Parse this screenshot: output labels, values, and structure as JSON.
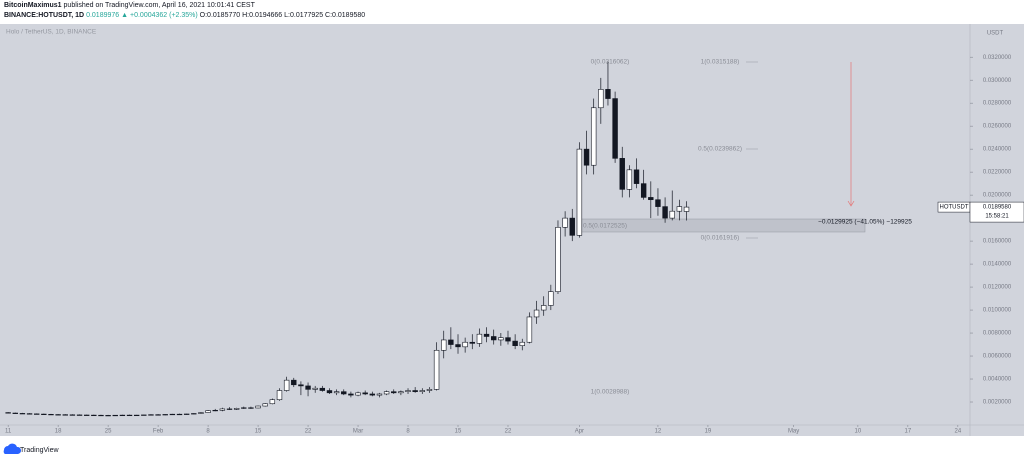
{
  "header": {
    "author": "BitcoinMaximus1",
    "published": "published on TradingView.com, April 16, 2021 10:01:41 CEST",
    "symbol": "BINANCE:HOTUSDT, 1D",
    "price": "0.0189976",
    "change": "▲ +0.0004362 (+2.35%)",
    "open": "O:0.0185770",
    "high": "H:0.0194666",
    "low": "L:0.0177925",
    "close": "C:0.0189580"
  },
  "annotations": [
    "0(0.0316062)",
    "1(0.0028988)",
    "1(0.0315188)",
    "0.5(0.0239862)",
    "0(0.0161916)",
    "0.5(0.0172525)",
    "−0.0129925 (−41.05%) −129925"
  ],
  "footer": "TradingView",
  "chart_data": {
    "type": "candlestick",
    "title": "Holo / TetherUS, 1D, BINANCE",
    "axis_unit": "USDT",
    "symbol_label": "HOTUSDT",
    "last_price": {
      "value": 0.018958,
      "label": "0.0189580"
    },
    "countdown": "15:58:21",
    "up_color": "#ffffff",
    "down_color": "#131722",
    "wick_color": "#131722",
    "grid": false,
    "ylim": [
      0,
      0.0348
    ],
    "yticks": [
      {
        "value": 0.002,
        "label": "0.0020000"
      },
      {
        "value": 0.004,
        "label": "0.0040000"
      },
      {
        "value": 0.006,
        "label": "0.0060000"
      },
      {
        "value": 0.008,
        "label": "0.0080000"
      },
      {
        "value": 0.01,
        "label": "0.0100000"
      },
      {
        "value": 0.012,
        "label": "0.0120000"
      },
      {
        "value": 0.014,
        "label": "0.0140000"
      },
      {
        "value": 0.016,
        "label": "0.0160000"
      },
      {
        "value": 0.018,
        "label": "0.0180000"
      },
      {
        "value": 0.02,
        "label": "0.0200000"
      },
      {
        "value": 0.022,
        "label": "0.0220000"
      },
      {
        "value": 0.024,
        "label": "0.0240000"
      },
      {
        "value": 0.026,
        "label": "0.0260000"
      },
      {
        "value": 0.028,
        "label": "0.0280000"
      },
      {
        "value": 0.03,
        "label": "0.0300000"
      },
      {
        "value": 0.032,
        "label": "0.0320000"
      }
    ],
    "xlim": [
      "01-10",
      "05-25"
    ],
    "xticks": [
      {
        "value": "01-11",
        "label": "11"
      },
      {
        "value": "01-18",
        "label": "18"
      },
      {
        "value": "01-25",
        "label": "25"
      },
      {
        "value": "02-01",
        "label": "Feb"
      },
      {
        "value": "02-08",
        "label": "8"
      },
      {
        "value": "02-15",
        "label": "15"
      },
      {
        "value": "02-22",
        "label": "22"
      },
      {
        "value": "03-01",
        "label": "Mar"
      },
      {
        "value": "03-08",
        "label": "8"
      },
      {
        "value": "03-15",
        "label": "15"
      },
      {
        "value": "03-22",
        "label": "22"
      },
      {
        "value": "04-01",
        "label": "Apr"
      },
      {
        "value": "04-12",
        "label": "12"
      },
      {
        "value": "04-19",
        "label": "19"
      },
      {
        "value": "05-01",
        "label": "May"
      },
      {
        "value": "05-10",
        "label": "10"
      },
      {
        "value": "05-17",
        "label": "17"
      },
      {
        "value": "05-24",
        "label": "24"
      }
    ],
    "x": [
      "01-11",
      "01-12",
      "01-13",
      "01-14",
      "01-15",
      "01-16",
      "01-17",
      "01-18",
      "01-19",
      "01-20",
      "01-21",
      "01-22",
      "01-23",
      "01-24",
      "01-25",
      "01-26",
      "01-27",
      "01-28",
      "01-29",
      "01-30",
      "01-31",
      "02-01",
      "02-02",
      "02-03",
      "02-04",
      "02-05",
      "02-06",
      "02-07",
      "02-08",
      "02-09",
      "02-10",
      "02-11",
      "02-12",
      "02-13",
      "02-14",
      "02-15",
      "02-16",
      "02-17",
      "02-18",
      "02-19",
      "02-20",
      "02-21",
      "02-22",
      "02-23",
      "02-24",
      "02-25",
      "02-26",
      "02-27",
      "02-28",
      "03-01",
      "03-02",
      "03-03",
      "03-04",
      "03-05",
      "03-06",
      "03-07",
      "03-08",
      "03-09",
      "03-10",
      "03-11",
      "03-12",
      "03-13",
      "03-14",
      "03-15",
      "03-16",
      "03-17",
      "03-18",
      "03-19",
      "03-20",
      "03-21",
      "03-22",
      "03-23",
      "03-24",
      "03-25",
      "03-26",
      "03-27",
      "03-28",
      "03-29",
      "03-30",
      "03-31",
      "04-01",
      "04-02",
      "04-03",
      "04-04",
      "04-05",
      "04-06",
      "04-07",
      "04-08",
      "04-09",
      "04-10",
      "04-11",
      "04-12",
      "04-13",
      "04-14",
      "04-15",
      "04-16"
    ],
    "ohlc": [
      [
        0.00108,
        0.00112,
        0.00102,
        0.00104
      ],
      [
        0.00104,
        0.00108,
        0.00098,
        0.00101
      ],
      [
        0.00101,
        0.00105,
        0.00096,
        0.00099
      ],
      [
        0.00099,
        0.00103,
        0.00094,
        0.00097
      ],
      [
        0.00097,
        0.00101,
        0.00092,
        0.00095
      ],
      [
        0.00095,
        0.00099,
        0.0009,
        0.00093
      ],
      [
        0.00093,
        0.00097,
        0.00088,
        0.00091
      ],
      [
        0.00091,
        0.00095,
        0.00087,
        0.0009
      ],
      [
        0.0009,
        0.00094,
        0.00086,
        0.00089
      ],
      [
        0.00089,
        0.00093,
        0.00085,
        0.00088
      ],
      [
        0.00088,
        0.00092,
        0.00084,
        0.00087
      ],
      [
        0.00087,
        0.0009,
        0.00083,
        0.00086
      ],
      [
        0.00086,
        0.0009,
        0.00082,
        0.00085
      ],
      [
        0.00085,
        0.00089,
        0.00081,
        0.00084
      ],
      [
        0.00084,
        0.00088,
        0.0008,
        0.00083
      ],
      [
        0.00083,
        0.00087,
        0.0008,
        0.00085
      ],
      [
        0.00085,
        0.00089,
        0.00081,
        0.00086
      ],
      [
        0.00086,
        0.0009,
        0.00082,
        0.00084
      ],
      [
        0.00084,
        0.00088,
        0.0008,
        0.00086
      ],
      [
        0.00086,
        0.0009,
        0.00083,
        0.00088
      ],
      [
        0.00088,
        0.00093,
        0.00085,
        0.0009
      ],
      [
        0.0009,
        0.00095,
        0.00086,
        0.00089
      ],
      [
        0.00089,
        0.00094,
        0.00085,
        0.00092
      ],
      [
        0.00092,
        0.00097,
        0.00088,
        0.00094
      ],
      [
        0.00094,
        0.00099,
        0.0009,
        0.00093
      ],
      [
        0.00093,
        0.00098,
        0.00089,
        0.00096
      ],
      [
        0.00096,
        0.00102,
        0.00092,
        0.001
      ],
      [
        0.001,
        0.00112,
        0.00097,
        0.00108
      ],
      [
        0.00108,
        0.0013,
        0.00104,
        0.00125
      ],
      [
        0.00125,
        0.0014,
        0.0012,
        0.00128
      ],
      [
        0.00128,
        0.0015,
        0.0012,
        0.0014
      ],
      [
        0.0014,
        0.00155,
        0.0013,
        0.00136
      ],
      [
        0.00136,
        0.0015,
        0.0013,
        0.00145
      ],
      [
        0.00145,
        0.0016,
        0.0014,
        0.0015
      ],
      [
        0.0015,
        0.0016,
        0.0014,
        0.00148
      ],
      [
        0.00148,
        0.0017,
        0.00145,
        0.00165
      ],
      [
        0.00165,
        0.0019,
        0.0016,
        0.00185
      ],
      [
        0.00185,
        0.0023,
        0.0018,
        0.0022
      ],
      [
        0.0022,
        0.0032,
        0.0021,
        0.003
      ],
      [
        0.003,
        0.0042,
        0.0029,
        0.0039
      ],
      [
        0.0039,
        0.0041,
        0.0033,
        0.0035
      ],
      [
        0.0035,
        0.0038,
        0.0026,
        0.0034
      ],
      [
        0.0034,
        0.0037,
        0.0025,
        0.0031
      ],
      [
        0.0031,
        0.0034,
        0.0028,
        0.0032
      ],
      [
        0.0032,
        0.0034,
        0.0029,
        0.003
      ],
      [
        0.003,
        0.0032,
        0.0027,
        0.0028
      ],
      [
        0.0028,
        0.0031,
        0.0026,
        0.0029
      ],
      [
        0.0029,
        0.0031,
        0.0026,
        0.0027
      ],
      [
        0.0027,
        0.0029,
        0.0024,
        0.0026
      ],
      [
        0.0026,
        0.0029,
        0.0025,
        0.0028
      ],
      [
        0.0028,
        0.003,
        0.0026,
        0.0027
      ],
      [
        0.0027,
        0.0029,
        0.0025,
        0.0026
      ],
      [
        0.0026,
        0.0028,
        0.0024,
        0.0027
      ],
      [
        0.0027,
        0.003,
        0.0026,
        0.0029
      ],
      [
        0.0029,
        0.0031,
        0.0027,
        0.0028
      ],
      [
        0.0028,
        0.003,
        0.0026,
        0.0029
      ],
      [
        0.0029,
        0.0032,
        0.0027,
        0.003
      ],
      [
        0.003,
        0.0033,
        0.0028,
        0.0029
      ],
      [
        0.0029,
        0.0032,
        0.0027,
        0.003
      ],
      [
        0.003,
        0.0033,
        0.0028,
        0.0031
      ],
      [
        0.0031,
        0.0072,
        0.003,
        0.0065
      ],
      [
        0.0065,
        0.0082,
        0.0058,
        0.0074
      ],
      [
        0.0074,
        0.0085,
        0.0066,
        0.007
      ],
      [
        0.007,
        0.0079,
        0.0062,
        0.0068
      ],
      [
        0.0068,
        0.0076,
        0.0063,
        0.0072
      ],
      [
        0.0072,
        0.0079,
        0.0066,
        0.0071
      ],
      [
        0.0071,
        0.0084,
        0.0068,
        0.0079
      ],
      [
        0.0079,
        0.0085,
        0.0072,
        0.0077
      ],
      [
        0.0077,
        0.0083,
        0.007,
        0.0074
      ],
      [
        0.0074,
        0.008,
        0.0069,
        0.0076
      ],
      [
        0.0076,
        0.0082,
        0.007,
        0.0073
      ],
      [
        0.0073,
        0.0079,
        0.0066,
        0.0069
      ],
      [
        0.0069,
        0.0075,
        0.0065,
        0.0072
      ],
      [
        0.0072,
        0.0098,
        0.0071,
        0.0094
      ],
      [
        0.0094,
        0.0108,
        0.0088,
        0.01
      ],
      [
        0.01,
        0.0112,
        0.0095,
        0.0104
      ],
      [
        0.0104,
        0.0122,
        0.01,
        0.0116
      ],
      [
        0.0116,
        0.0178,
        0.0114,
        0.0172
      ],
      [
        0.0172,
        0.0186,
        0.0164,
        0.018
      ],
      [
        0.018,
        0.0188,
        0.016,
        0.0165
      ],
      [
        0.0165,
        0.0246,
        0.0163,
        0.024
      ],
      [
        0.024,
        0.0256,
        0.0218,
        0.0226
      ],
      [
        0.0226,
        0.0284,
        0.0218,
        0.0276
      ],
      [
        0.0276,
        0.0302,
        0.0262,
        0.0292
      ],
      [
        0.0292,
        0.0316,
        0.0278,
        0.0284
      ],
      [
        0.0284,
        0.029,
        0.0228,
        0.0232
      ],
      [
        0.0232,
        0.0242,
        0.0198,
        0.0205
      ],
      [
        0.0205,
        0.0226,
        0.0198,
        0.0222
      ],
      [
        0.0222,
        0.0232,
        0.0206,
        0.021
      ],
      [
        0.021,
        0.0222,
        0.0196,
        0.0198
      ],
      [
        0.0198,
        0.0212,
        0.018,
        0.0196
      ],
      [
        0.0196,
        0.0206,
        0.0182,
        0.019
      ],
      [
        0.019,
        0.0198,
        0.0176,
        0.018
      ],
      [
        0.018,
        0.0204,
        0.0178,
        0.0186
      ],
      [
        0.0186,
        0.0196,
        0.0178,
        0.019
      ],
      [
        0.018577,
        0.0194666,
        0.0177925,
        0.018958
      ]
    ]
  }
}
